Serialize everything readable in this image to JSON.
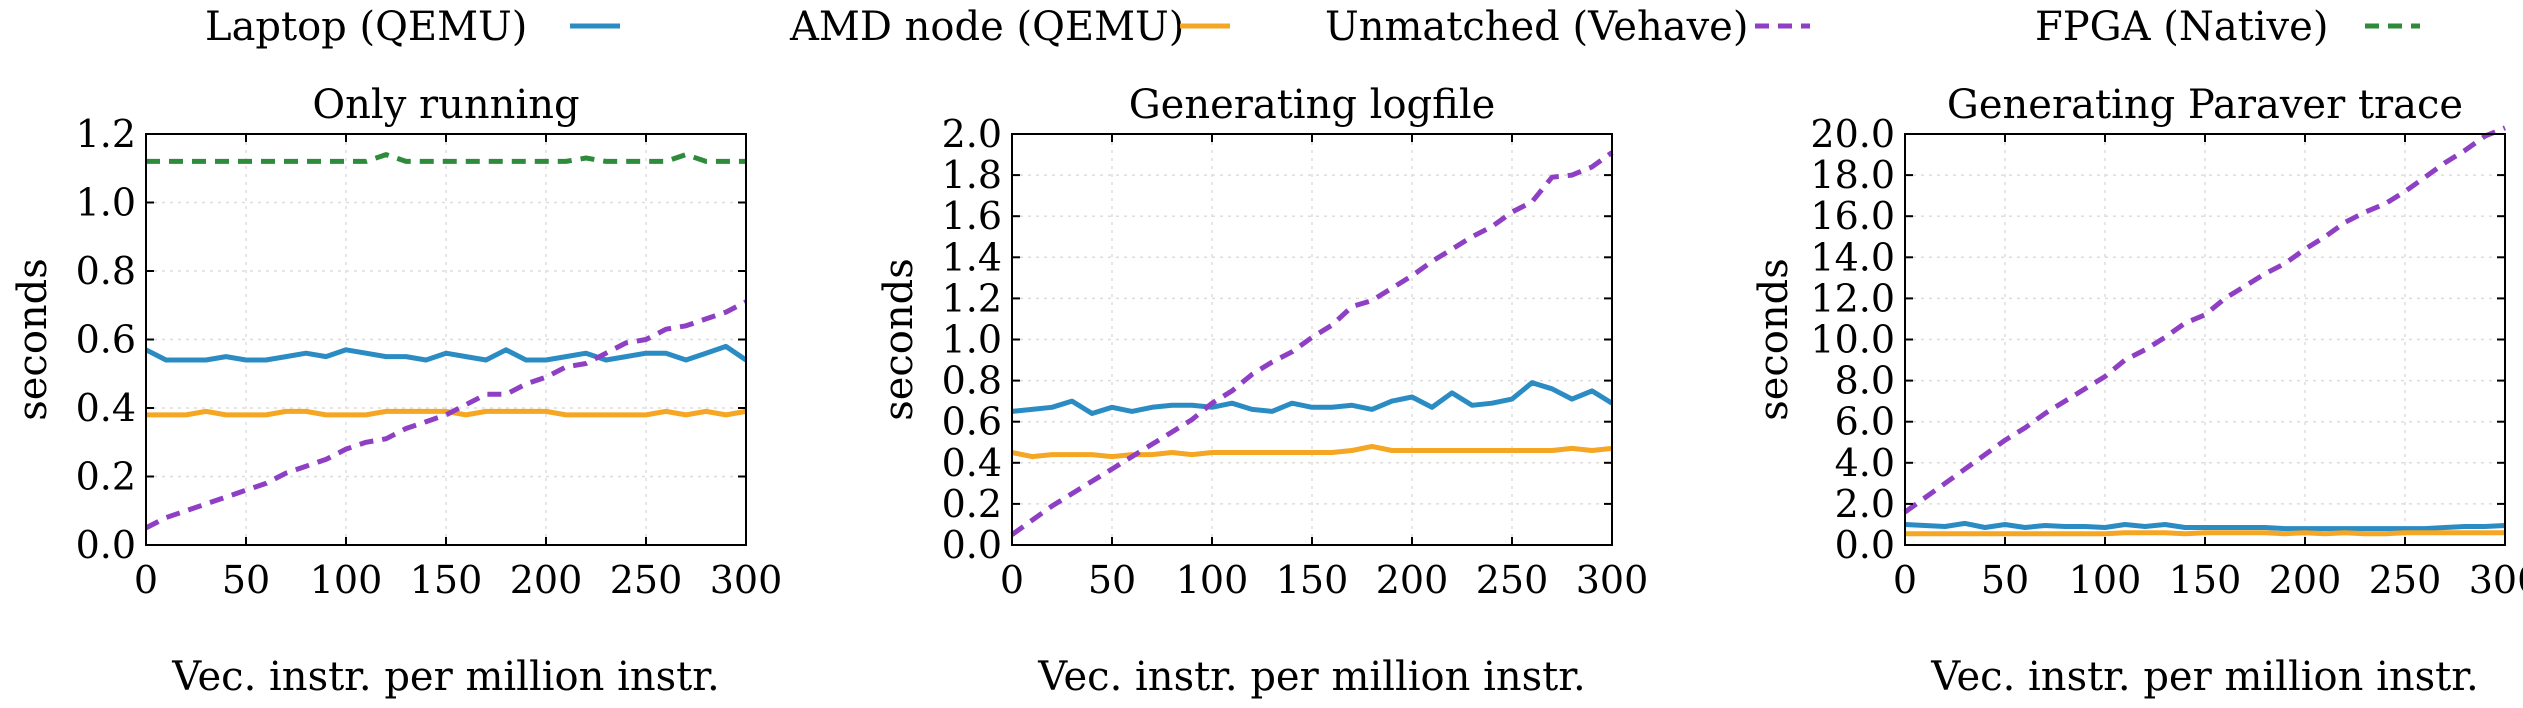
{
  "chart_data": {
    "type": "line",
    "legend": [
      {
        "name": "Laptop (QEMU)",
        "color": "#2b8cc4",
        "dash": "solid"
      },
      {
        "name": "AMD node (QEMU)",
        "color": "#f5a623",
        "dash": "solid"
      },
      {
        "name": "Unmatched (Vehave)",
        "color": "#8e3fc3",
        "dash": "dashed"
      },
      {
        "name": "FPGA (Native)",
        "color": "#2e8b3a",
        "dash": "dashed"
      }
    ],
    "panels": [
      {
        "title": "Only running",
        "xlabel": "Vec. instr. per million instr.",
        "ylabel": "seconds",
        "xlim": [
          0,
          300
        ],
        "ylim": [
          0,
          1.2
        ],
        "xticks": [
          0,
          50,
          100,
          150,
          200,
          250,
          300
        ],
        "xtick_labels": [
          "0",
          "50",
          "100",
          "150",
          "200",
          "250",
          "300"
        ],
        "yticks": [
          0,
          0.2,
          0.4,
          0.6,
          0.8,
          1.0,
          1.2
        ],
        "ytick_labels": [
          "0.0",
          "0.2",
          "0.4",
          "0.6",
          "0.8",
          "1.0",
          "1.2"
        ],
        "x": [
          0,
          10,
          20,
          30,
          40,
          50,
          60,
          70,
          80,
          90,
          100,
          110,
          120,
          130,
          140,
          150,
          160,
          170,
          180,
          190,
          200,
          210,
          220,
          230,
          240,
          250,
          260,
          270,
          280,
          290,
          300
        ],
        "series": [
          {
            "name": "Laptop (QEMU)",
            "values": [
              0.57,
              0.54,
              0.54,
              0.54,
              0.55,
              0.54,
              0.54,
              0.55,
              0.56,
              0.55,
              0.57,
              0.56,
              0.55,
              0.55,
              0.54,
              0.56,
              0.55,
              0.54,
              0.57,
              0.54,
              0.54,
              0.55,
              0.56,
              0.54,
              0.55,
              0.56,
              0.56,
              0.54,
              0.56,
              0.58,
              0.54
            ]
          },
          {
            "name": "AMD node (QEMU)",
            "values": [
              0.38,
              0.38,
              0.38,
              0.39,
              0.38,
              0.38,
              0.38,
              0.39,
              0.39,
              0.38,
              0.38,
              0.38,
              0.39,
              0.39,
              0.39,
              0.39,
              0.38,
              0.39,
              0.39,
              0.39,
              0.39,
              0.38,
              0.38,
              0.38,
              0.38,
              0.38,
              0.39,
              0.38,
              0.39,
              0.38,
              0.39
            ]
          },
          {
            "name": "Unmatched (Vehave)",
            "values": [
              0.05,
              0.08,
              0.1,
              0.12,
              0.14,
              0.16,
              0.18,
              0.21,
              0.23,
              0.25,
              0.28,
              0.3,
              0.31,
              0.34,
              0.36,
              0.38,
              0.41,
              0.44,
              0.44,
              0.47,
              0.49,
              0.52,
              0.53,
              0.56,
              0.59,
              0.6,
              0.63,
              0.64,
              0.66,
              0.68,
              0.71
            ]
          },
          {
            "name": "FPGA (Native)",
            "values": [
              1.12,
              1.12,
              1.12,
              1.12,
              1.12,
              1.12,
              1.12,
              1.12,
              1.12,
              1.12,
              1.12,
              1.12,
              1.14,
              1.12,
              1.12,
              1.12,
              1.12,
              1.12,
              1.12,
              1.12,
              1.12,
              1.12,
              1.13,
              1.12,
              1.12,
              1.12,
              1.12,
              1.14,
              1.12,
              1.12,
              1.12
            ]
          }
        ]
      },
      {
        "title": "Generating logfile",
        "xlabel": "Vec. instr. per million instr.",
        "ylabel": "seconds",
        "xlim": [
          0,
          300
        ],
        "ylim": [
          0,
          2.0
        ],
        "xticks": [
          0,
          50,
          100,
          150,
          200,
          250,
          300
        ],
        "xtick_labels": [
          "0",
          "50",
          "100",
          "150",
          "200",
          "250",
          "300"
        ],
        "yticks": [
          0,
          0.2,
          0.4,
          0.6,
          0.8,
          1.0,
          1.2,
          1.4,
          1.6,
          1.8,
          2.0
        ],
        "ytick_labels": [
          "0.0",
          "0.2",
          "0.4",
          "0.6",
          "0.8",
          "1.0",
          "1.2",
          "1.4",
          "1.6",
          "1.8",
          "2.0"
        ],
        "x": [
          0,
          10,
          20,
          30,
          40,
          50,
          60,
          70,
          80,
          90,
          100,
          110,
          120,
          130,
          140,
          150,
          160,
          170,
          180,
          190,
          200,
          210,
          220,
          230,
          240,
          250,
          260,
          270,
          280,
          290,
          300
        ],
        "series": [
          {
            "name": "Laptop (QEMU)",
            "values": [
              0.65,
              0.66,
              0.67,
              0.7,
              0.64,
              0.67,
              0.65,
              0.67,
              0.68,
              0.68,
              0.67,
              0.69,
              0.66,
              0.65,
              0.69,
              0.67,
              0.67,
              0.68,
              0.66,
              0.7,
              0.72,
              0.67,
              0.74,
              0.68,
              0.69,
              0.71,
              0.79,
              0.76,
              0.71,
              0.75,
              0.69
            ]
          },
          {
            "name": "AMD node (QEMU)",
            "values": [
              0.45,
              0.43,
              0.44,
              0.44,
              0.44,
              0.43,
              0.44,
              0.44,
              0.45,
              0.44,
              0.45,
              0.45,
              0.45,
              0.45,
              0.45,
              0.45,
              0.45,
              0.46,
              0.48,
              0.46,
              0.46,
              0.46,
              0.46,
              0.46,
              0.46,
              0.46,
              0.46,
              0.46,
              0.47,
              0.46,
              0.47
            ]
          },
          {
            "name": "Unmatched (Vehave)",
            "values": [
              0.05,
              0.12,
              0.19,
              0.25,
              0.31,
              0.37,
              0.43,
              0.49,
              0.55,
              0.61,
              0.69,
              0.75,
              0.83,
              0.89,
              0.94,
              1.01,
              1.07,
              1.16,
              1.19,
              1.25,
              1.31,
              1.38,
              1.44,
              1.5,
              1.55,
              1.62,
              1.67,
              1.79,
              1.8,
              1.84,
              1.91
            ]
          },
          {
            "name": "FPGA (Native)",
            "values": []
          }
        ]
      },
      {
        "title": "Generating Paraver trace",
        "xlabel": "Vec. instr. per million instr.",
        "ylabel": "seconds",
        "xlim": [
          0,
          300
        ],
        "ylim": [
          0,
          20
        ],
        "xticks": [
          0,
          50,
          100,
          150,
          200,
          250,
          300
        ],
        "xtick_labels": [
          "0",
          "50",
          "100",
          "150",
          "200",
          "250",
          "300"
        ],
        "yticks": [
          0,
          2,
          4,
          6,
          8,
          10,
          12,
          14,
          16,
          18,
          20
        ],
        "ytick_labels": [
          "0.0",
          "2.0",
          "4.0",
          "6.0",
          "8.0",
          "10.0",
          "12.0",
          "14.0",
          "16.0",
          "18.0",
          "20.0"
        ],
        "x": [
          0,
          10,
          20,
          30,
          40,
          50,
          60,
          70,
          80,
          90,
          100,
          110,
          120,
          130,
          140,
          150,
          160,
          170,
          180,
          190,
          200,
          210,
          220,
          230,
          240,
          250,
          260,
          270,
          280,
          290,
          300
        ],
        "series": [
          {
            "name": "Laptop (QEMU)",
            "values": [
              1.0,
              0.95,
              0.9,
              1.05,
              0.85,
              1.0,
              0.85,
              0.95,
              0.9,
              0.9,
              0.85,
              1.0,
              0.9,
              1.0,
              0.85,
              0.85,
              0.85,
              0.85,
              0.85,
              0.8,
              0.8,
              0.8,
              0.8,
              0.8,
              0.8,
              0.8,
              0.8,
              0.85,
              0.9,
              0.9,
              0.95
            ]
          },
          {
            "name": "AMD node (QEMU)",
            "values": [
              0.55,
              0.55,
              0.55,
              0.55,
              0.55,
              0.55,
              0.55,
              0.55,
              0.55,
              0.55,
              0.55,
              0.6,
              0.6,
              0.6,
              0.55,
              0.6,
              0.6,
              0.6,
              0.6,
              0.55,
              0.6,
              0.55,
              0.6,
              0.55,
              0.55,
              0.6,
              0.6,
              0.6,
              0.6,
              0.6,
              0.6
            ]
          },
          {
            "name": "Unmatched (Vehave)",
            "values": [
              1.6,
              2.3,
              3.0,
              3.7,
              4.4,
              5.1,
              5.7,
              6.4,
              7.0,
              7.6,
              8.2,
              9.0,
              9.5,
              10.1,
              10.8,
              11.2,
              12.0,
              12.6,
              13.2,
              13.7,
              14.4,
              15.0,
              15.7,
              16.2,
              16.6,
              17.2,
              17.9,
              18.6,
              19.2,
              19.9,
              20.3
            ]
          },
          {
            "name": "FPGA (Native)",
            "values": []
          }
        ]
      }
    ]
  }
}
